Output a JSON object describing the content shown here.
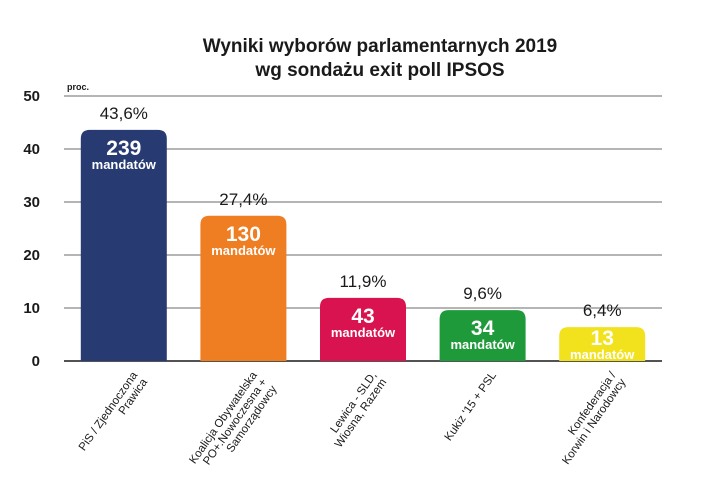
{
  "chart_data": {
    "type": "bar",
    "title_lines": [
      "Wyniki wyborów parlamentarnych 2019",
      "wg sondażu exit poll IPSOS"
    ],
    "ylabel": "proc.",
    "ylim": [
      0,
      50
    ],
    "yticks": [
      0,
      10,
      20,
      30,
      40,
      50
    ],
    "grid": true,
    "categories": [
      [
        "PiS / Zjednoczona",
        "Prawica"
      ],
      [
        "Koalicja Obywatelska",
        "PO+.Nowoczesna +",
        "Samorządowcy"
      ],
      [
        "Lewica - SLD,",
        "Wiosna, Razem"
      ],
      [
        "Kukiz '15 + PSL"
      ],
      [
        "Konfederacja /",
        "Korwin i Narodowcy"
      ]
    ],
    "values": [
      43.6,
      27.4,
      11.9,
      9.6,
      6.4
    ],
    "percent_labels": [
      "43,6%",
      "27,4%",
      "11,9%",
      "9,6%",
      "6,4%"
    ],
    "seats": [
      "239",
      "130",
      "43",
      "34",
      "13"
    ],
    "seats_unit": "mandatów",
    "colors": [
      "#283a72",
      "#ef7d22",
      "#d9134f",
      "#1f9a3a",
      "#f2e21d"
    ]
  }
}
